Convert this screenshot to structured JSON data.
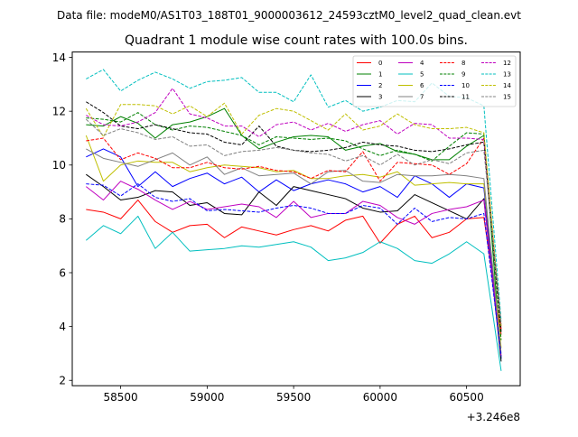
{
  "suptitle": "Data file: modeM0/AS1T03_188T01_9000003612_24593cztM0_level2_quad_clean.evt",
  "chart_data": {
    "type": "line",
    "title": "Quadrant 1 module wise count rates with 100.0s bins.",
    "xlabel": "",
    "ylabel": "",
    "x_offset_label": "+3.246e8",
    "xlim": [
      58220,
      60810
    ],
    "ylim": [
      1.8,
      14.2
    ],
    "xticks": [
      58500,
      59000,
      59500,
      60000,
      60500
    ],
    "xtick_labels": [
      "58500",
      "59000",
      "59500",
      "60000",
      "60500"
    ],
    "yticks": [
      2,
      4,
      6,
      8,
      10,
      12,
      14
    ],
    "ytick_labels": [
      "2",
      "4",
      "6",
      "8",
      "10",
      "12",
      "14"
    ],
    "legend_location": "top-right",
    "x": [
      58300,
      58400,
      58500,
      58600,
      58700,
      58800,
      58900,
      59000,
      59100,
      59200,
      59300,
      59400,
      59500,
      59600,
      59700,
      59800,
      59900,
      60000,
      60100,
      60200,
      60300,
      60400,
      60500,
      60600,
      60700
    ],
    "series": [
      {
        "name": "0",
        "color": "#ff0000",
        "dash": "solid",
        "values": [
          8.35,
          8.25,
          8.0,
          8.7,
          7.9,
          7.5,
          7.75,
          7.8,
          7.3,
          7.7,
          7.55,
          7.4,
          7.6,
          7.75,
          7.55,
          7.95,
          8.1,
          7.1,
          7.8,
          8.1,
          7.3,
          7.5,
          8.0,
          8.05,
          3.7
        ]
      },
      {
        "name": "1",
        "color": "#008000",
        "dash": "solid",
        "values": [
          11.5,
          11.45,
          11.8,
          11.55,
          11.0,
          11.5,
          11.6,
          11.8,
          12.1,
          11.1,
          10.6,
          10.85,
          11.05,
          11.1,
          11.05,
          10.55,
          10.7,
          10.8,
          10.5,
          10.4,
          10.2,
          10.2,
          10.7,
          11.1,
          2.8
        ]
      },
      {
        "name": "2",
        "color": "#0000ff",
        "dash": "solid",
        "values": [
          10.3,
          10.6,
          10.3,
          9.2,
          9.75,
          9.2,
          9.5,
          9.7,
          9.3,
          9.55,
          9.0,
          9.45,
          9.05,
          9.3,
          9.45,
          9.3,
          9.0,
          9.2,
          8.8,
          9.6,
          9.3,
          8.8,
          9.3,
          9.15,
          2.8
        ]
      },
      {
        "name": "3",
        "color": "#000000",
        "dash": "solid",
        "values": [
          9.65,
          9.2,
          8.7,
          8.8,
          9.05,
          9.0,
          8.5,
          8.6,
          8.2,
          8.15,
          9.0,
          8.5,
          9.2,
          9.05,
          8.9,
          8.75,
          8.4,
          8.25,
          8.3,
          8.9,
          8.6,
          8.3,
          8.0,
          8.75,
          2.7
        ]
      },
      {
        "name": "4",
        "color": "#bf00bf",
        "dash": "solid",
        "values": [
          9.2,
          8.7,
          9.4,
          9.1,
          8.7,
          8.35,
          8.65,
          8.35,
          8.45,
          8.55,
          8.45,
          8.05,
          8.65,
          8.05,
          8.2,
          8.2,
          8.65,
          8.5,
          8.05,
          7.8,
          8.2,
          8.35,
          8.45,
          8.7,
          2.9
        ]
      },
      {
        "name": "5",
        "color": "#00bfbf",
        "dash": "solid",
        "values": [
          7.2,
          7.75,
          7.45,
          8.1,
          6.9,
          7.5,
          6.8,
          6.85,
          6.9,
          7.0,
          6.95,
          7.05,
          7.15,
          6.95,
          6.45,
          6.55,
          6.75,
          7.15,
          6.9,
          6.45,
          6.35,
          6.7,
          7.15,
          6.7,
          2.35
        ]
      },
      {
        "name": "6",
        "color": "#bfbf00",
        "dash": "solid",
        "values": [
          11.1,
          9.4,
          10.0,
          10.15,
          10.1,
          10.1,
          9.75,
          9.9,
          10.0,
          9.95,
          9.9,
          9.75,
          9.8,
          9.5,
          9.5,
          9.6,
          9.65,
          9.55,
          9.75,
          9.25,
          9.3,
          9.35,
          9.3,
          9.3,
          3.2
        ]
      },
      {
        "name": "7",
        "color": "#808080",
        "dash": "solid",
        "values": [
          10.6,
          10.25,
          10.1,
          9.95,
          10.2,
          10.45,
          10.0,
          10.3,
          9.65,
          9.9,
          9.6,
          9.65,
          9.7,
          9.3,
          9.75,
          9.8,
          9.4,
          9.35,
          9.65,
          9.6,
          9.6,
          9.65,
          9.6,
          9.5,
          3.0
        ]
      },
      {
        "name": "8",
        "color": "#ff0000",
        "dash": "dashed",
        "values": [
          10.9,
          11.0,
          10.2,
          10.45,
          10.25,
          9.9,
          9.9,
          10.1,
          9.9,
          9.85,
          9.95,
          9.8,
          9.75,
          9.5,
          9.8,
          9.75,
          10.5,
          9.4,
          10.1,
          10.05,
          10.0,
          9.65,
          10.05,
          11.0,
          3.9
        ]
      },
      {
        "name": "9",
        "color": "#008000",
        "dash": "dashed",
        "values": [
          11.75,
          11.7,
          11.6,
          11.95,
          11.5,
          11.3,
          11.45,
          11.4,
          11.25,
          11.1,
          10.75,
          11.05,
          11.0,
          10.95,
          11.0,
          10.9,
          10.6,
          10.35,
          10.55,
          10.4,
          10.15,
          10.7,
          11.2,
          11.15,
          3.5
        ]
      },
      {
        "name": "10",
        "color": "#0000ff",
        "dash": "dashed",
        "values": [
          9.3,
          9.25,
          8.85,
          9.3,
          8.8,
          8.65,
          8.75,
          8.3,
          8.35,
          8.3,
          8.25,
          8.4,
          8.5,
          8.4,
          8.2,
          8.2,
          8.5,
          8.4,
          7.8,
          8.4,
          7.9,
          8.05,
          8.0,
          8.2,
          2.9
        ]
      },
      {
        "name": "11",
        "color": "#000000",
        "dash": "dashed",
        "values": [
          12.35,
          11.95,
          11.45,
          11.35,
          11.5,
          11.35,
          11.2,
          11.15,
          10.85,
          10.75,
          11.45,
          10.7,
          10.55,
          10.5,
          10.55,
          10.65,
          10.85,
          10.75,
          10.7,
          10.55,
          10.5,
          10.6,
          10.75,
          10.85,
          3.8
        ]
      },
      {
        "name": "12",
        "color": "#bf00bf",
        "dash": "dashed",
        "values": [
          11.85,
          11.5,
          11.45,
          11.6,
          11.95,
          12.85,
          11.9,
          11.75,
          11.45,
          11.45,
          11.05,
          11.5,
          11.6,
          11.3,
          11.55,
          11.25,
          11.5,
          11.65,
          11.15,
          11.55,
          11.5,
          11.0,
          11.0,
          10.95,
          4.0
        ]
      },
      {
        "name": "13",
        "color": "#00bfbf",
        "dash": "dashed",
        "values": [
          13.2,
          13.55,
          12.75,
          13.15,
          13.45,
          13.2,
          12.85,
          13.1,
          13.15,
          13.25,
          12.7,
          12.7,
          12.35,
          13.35,
          12.15,
          12.4,
          12.0,
          12.15,
          12.4,
          12.35,
          13.05,
          12.55,
          12.5,
          12.2,
          4.2
        ]
      },
      {
        "name": "14",
        "color": "#bfbf00",
        "dash": "dashed",
        "values": [
          12.1,
          11.05,
          12.25,
          12.25,
          12.2,
          11.9,
          12.2,
          11.8,
          12.3,
          11.15,
          11.85,
          12.1,
          12.0,
          11.65,
          11.3,
          11.9,
          11.3,
          11.45,
          11.9,
          11.5,
          11.35,
          11.35,
          11.4,
          11.2,
          4.0
        ]
      },
      {
        "name": "15",
        "color": "#808080",
        "dash": "dashed",
        "values": [
          11.7,
          11.1,
          11.35,
          11.2,
          10.95,
          11.05,
          10.7,
          10.75,
          10.35,
          10.5,
          10.55,
          10.65,
          10.55,
          10.45,
          10.4,
          10.15,
          10.35,
          10.0,
          10.4,
          10.0,
          10.2,
          10.05,
          10.45,
          10.55,
          4.1
        ]
      }
    ]
  }
}
